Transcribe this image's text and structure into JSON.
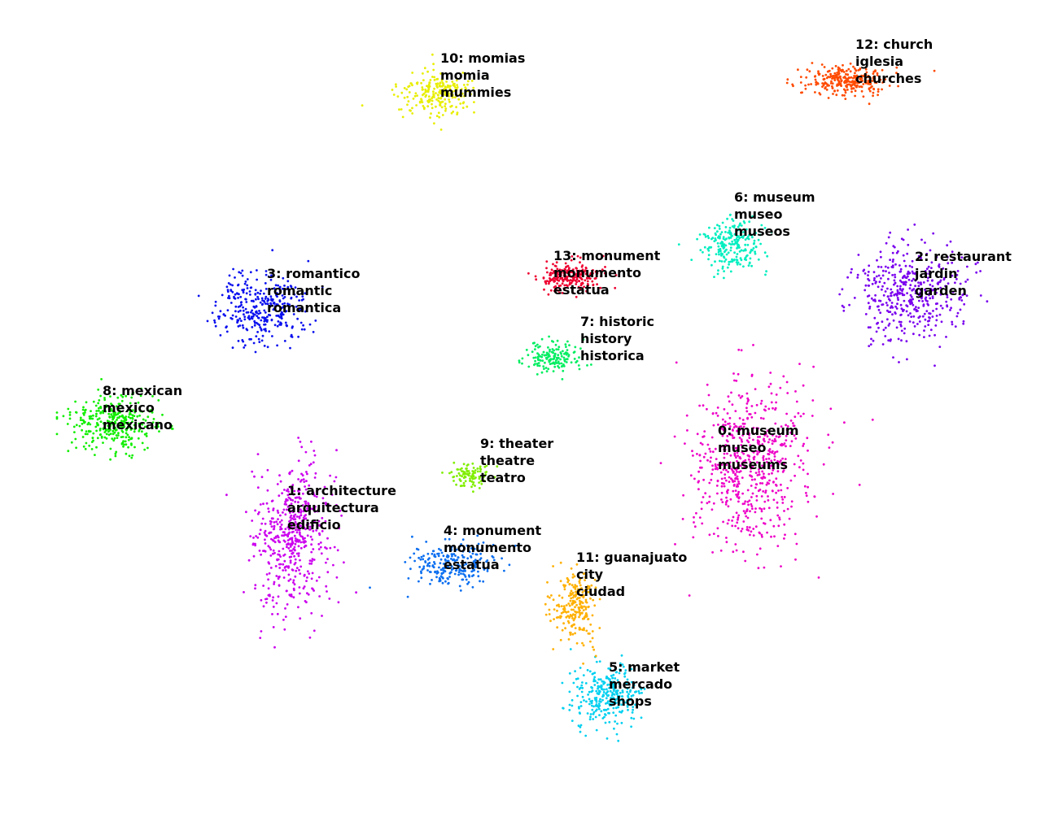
{
  "chart_data": {
    "type": "scatter",
    "title": "",
    "xlabel": "",
    "ylabel": "",
    "axes_visible": false,
    "grid": false,
    "legend": "none",
    "clusters": [
      {
        "id": 0,
        "label_lines": [
          "0: museum",
          "museo",
          "museums"
        ],
        "color": "#ee00c8",
        "center": [
          920,
          570
        ],
        "spread": [
          60,
          85
        ],
        "n": 620
      },
      {
        "id": 1,
        "label_lines": [
          "1: architecture",
          "arquitectura",
          "edificio"
        ],
        "color": "#cc00ee",
        "center": [
          360,
          660
        ],
        "spread": [
          40,
          75
        ],
        "n": 520
      },
      {
        "id": 2,
        "label_lines": [
          "2: restaurant",
          "jardin",
          "garden"
        ],
        "color": "#7a00ee",
        "center": [
          1120,
          360
        ],
        "spread": [
          55,
          48
        ],
        "n": 430
      },
      {
        "id": 3,
        "label_lines": [
          "3: romantico",
          "romantic",
          "romantica"
        ],
        "color": "#0a10ee",
        "center": [
          320,
          380
        ],
        "spread": [
          45,
          35
        ],
        "n": 330
      },
      {
        "id": 4,
        "label_lines": [
          "4: monument",
          "monumento",
          "estatua"
        ],
        "color": "#0a6ef0",
        "center": [
          555,
          695
        ],
        "spread": [
          45,
          22
        ],
        "n": 230
      },
      {
        "id": 5,
        "label_lines": [
          "5: market",
          "mercado",
          "shops"
        ],
        "color": "#00d0f0",
        "center": [
          745,
          855
        ],
        "spread": [
          35,
          30
        ],
        "n": 300
      },
      {
        "id": 6,
        "label_lines": [
          "6: museum",
          "museo",
          "museos"
        ],
        "color": "#00eec0",
        "center": [
          900,
          300
        ],
        "spread": [
          30,
          25
        ],
        "n": 230
      },
      {
        "id": 7,
        "label_lines": [
          "7: historic",
          "history",
          "historica"
        ],
        "color": "#00ee60",
        "center": [
          680,
          440
        ],
        "spread": [
          25,
          15
        ],
        "n": 150
      },
      {
        "id": 8,
        "label_lines": [
          "8: mexican",
          "mexico",
          "mexicano"
        ],
        "color": "#10ee00",
        "center": [
          140,
          520
        ],
        "spread": [
          45,
          28
        ],
        "n": 330
      },
      {
        "id": 9,
        "label_lines": [
          "9: theater",
          "theatre",
          "teatro"
        ],
        "color": "#80ee00",
        "center": [
          575,
          585
        ],
        "spread": [
          20,
          12
        ],
        "n": 100
      },
      {
        "id": 10,
        "label_lines": [
          "10: momias",
          "momia",
          "mummies"
        ],
        "color": "#e8ee00",
        "center": [
          535,
          115
        ],
        "spread": [
          35,
          22
        ],
        "n": 230
      },
      {
        "id": 11,
        "label_lines": [
          "11: guanajuato",
          "city",
          "ciudad"
        ],
        "color": "#ffb000",
        "center": [
          705,
          745
        ],
        "spread": [
          22,
          35
        ],
        "n": 230
      },
      {
        "id": 12,
        "label_lines": [
          "12: church",
          "iglesia",
          "churches"
        ],
        "color": "#ff4a00",
        "center": [
          1040,
          100
        ],
        "spread": [
          40,
          15
        ],
        "n": 280
      },
      {
        "id": 13,
        "label_lines": [
          "13: monument",
          "monumento",
          "estatua"
        ],
        "color": "#ee0030",
        "center": [
          700,
          340
        ],
        "spread": [
          28,
          15
        ],
        "n": 230
      }
    ]
  }
}
